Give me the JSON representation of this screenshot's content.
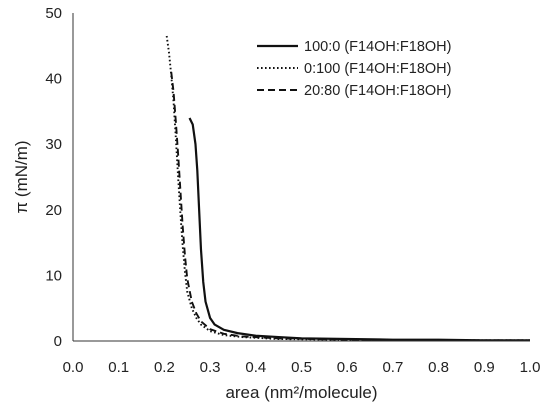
{
  "chart_data": {
    "type": "line",
    "title": "",
    "xlabel": "area (nm²/molecule)",
    "ylabel": "π (mN/m)",
    "xlim": [
      0.0,
      1.0
    ],
    "ylim": [
      0,
      50
    ],
    "xticks": [
      0.0,
      0.1,
      0.2,
      0.3,
      0.4,
      0.5,
      0.6,
      0.7,
      0.8,
      0.9,
      1.0
    ],
    "xtick_labels": [
      "0.0",
      "0.1",
      "0.2",
      "0.3",
      "0.4",
      "0.5",
      "0.6",
      "0.7",
      "0.8",
      "0.9",
      "1.0"
    ],
    "yticks": [
      0,
      10,
      20,
      30,
      40,
      50
    ],
    "ytick_labels": [
      "0",
      "10",
      "20",
      "30",
      "40",
      "50"
    ],
    "grid": false,
    "legend_position": "top-right",
    "series": [
      {
        "name": "100:0 (F14OH:F18OH)",
        "style": "solid",
        "color": "#111111",
        "x": [
          0.255,
          0.262,
          0.268,
          0.272,
          0.276,
          0.28,
          0.285,
          0.29,
          0.3,
          0.31,
          0.33,
          0.36,
          0.4,
          0.45,
          0.5,
          0.6,
          0.7,
          0.8,
          0.9,
          1.0
        ],
        "y": [
          34.0,
          33.0,
          30.0,
          26.0,
          20.0,
          14.0,
          9.0,
          6.0,
          3.5,
          2.5,
          1.7,
          1.2,
          0.8,
          0.6,
          0.4,
          0.3,
          0.2,
          0.2,
          0.1,
          0.1
        ]
      },
      {
        "name": "0:100 (F14OH:F18OH)",
        "style": "dotted",
        "color": "#111111",
        "x": [
          0.205,
          0.21,
          0.215,
          0.22,
          0.225,
          0.23,
          0.235,
          0.24,
          0.245,
          0.25,
          0.26,
          0.27,
          0.28,
          0.3,
          0.33,
          0.37,
          0.45,
          0.6,
          0.8,
          1.0
        ],
        "y": [
          46.5,
          44.0,
          40.5,
          36.5,
          31.0,
          25.0,
          19.5,
          14.5,
          10.5,
          7.5,
          5.0,
          3.5,
          2.5,
          1.5,
          0.9,
          0.6,
          0.3,
          0.2,
          0.1,
          0.1
        ]
      },
      {
        "name": "20:80 (F14OH:F18OH)",
        "style": "dashed",
        "color": "#111111",
        "x": [
          0.215,
          0.22,
          0.225,
          0.23,
          0.235,
          0.24,
          0.245,
          0.25,
          0.26,
          0.27,
          0.28,
          0.3,
          0.33,
          0.37,
          0.45,
          0.6,
          0.8,
          1.0
        ],
        "y": [
          41.0,
          38.0,
          33.5,
          28.5,
          23.0,
          17.5,
          13.0,
          9.5,
          6.0,
          4.2,
          3.0,
          1.8,
          1.1,
          0.7,
          0.4,
          0.2,
          0.1,
          0.1
        ]
      }
    ]
  }
}
